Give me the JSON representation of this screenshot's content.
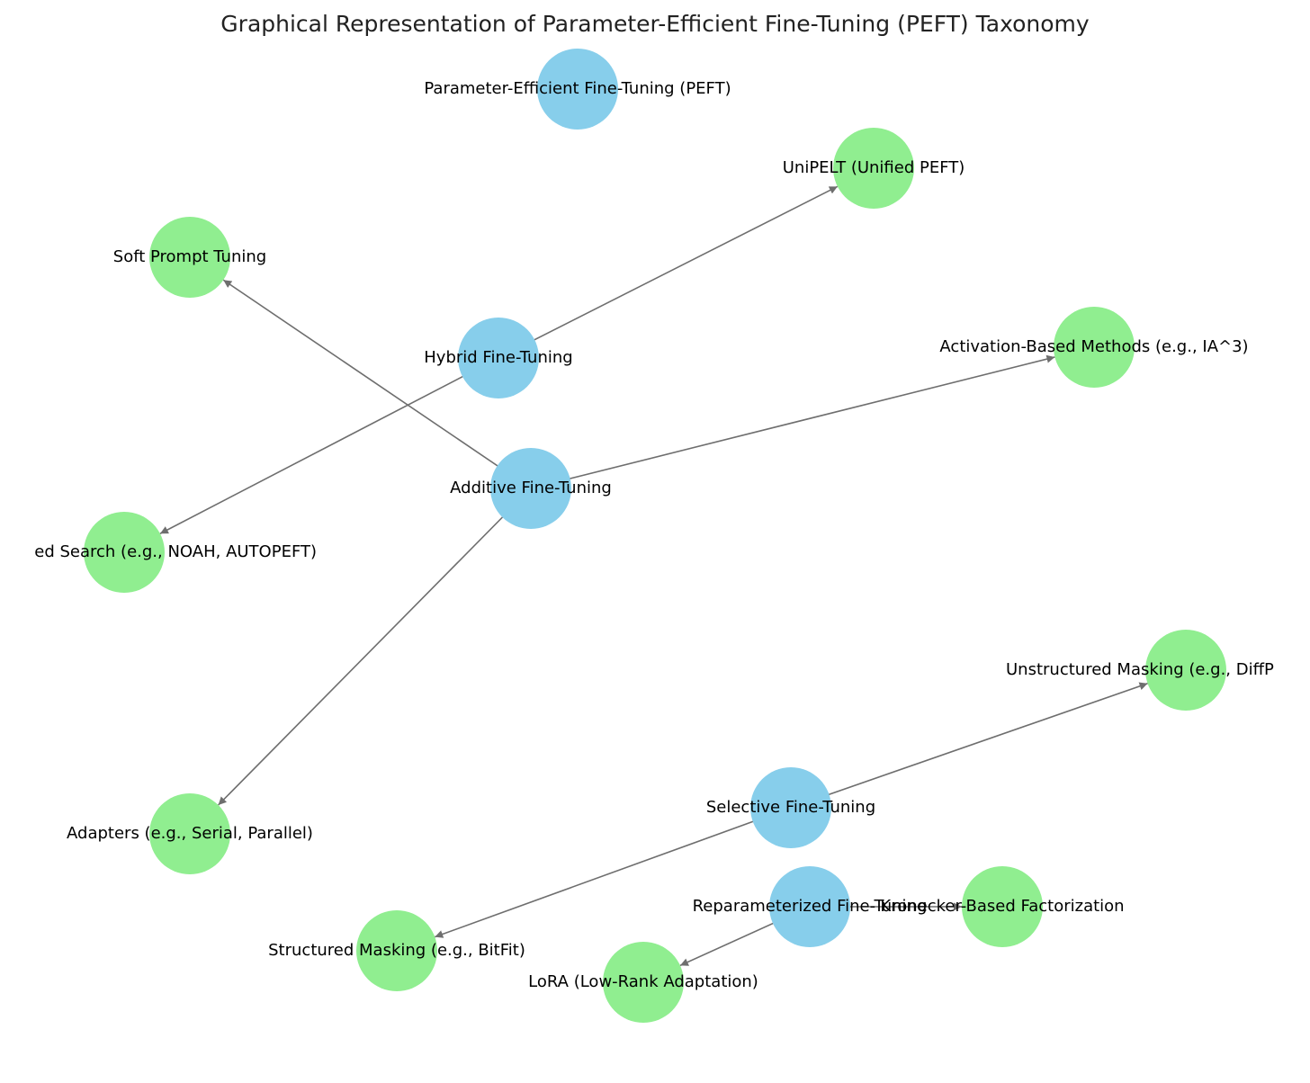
{
  "title": "Graphical Representation of Parameter-Efficient Fine-Tuning (PEFT) Taxonomy",
  "nodes": [
    {
      "label": "Parameter-Efficient Fine-Tuning (PEFT)",
      "color": "#87ceeb"
    },
    {
      "label": "UniPELT (Unified PEFT)",
      "color": "#90ee90"
    },
    {
      "label": "Soft Prompt Tuning",
      "color": "#90ee90"
    },
    {
      "label": "Hybrid Fine-Tuning",
      "color": "#87ceeb"
    },
    {
      "label": "Activation-Based Methods (e.g., IA^3)",
      "color": "#90ee90"
    },
    {
      "label": "Additive Fine-Tuning",
      "color": "#87ceeb"
    },
    {
      "label": "ed Search (e.g., NOAH, AUTOPEFT)",
      "color": "#90ee90"
    },
    {
      "label": "Unstructured Masking (e.g., DiffP",
      "color": "#90ee90"
    },
    {
      "label": "Selective Fine-Tuning",
      "color": "#87ceeb"
    },
    {
      "label": "Adapters (e.g., Serial, Parallel)",
      "color": "#90ee90"
    },
    {
      "label": "Reparameterized Fine-Tuning",
      "color": "#87ceeb"
    },
    {
      "label": "Kronecker-Based Factorization",
      "color": "#90ee90"
    },
    {
      "label": "Structured Masking (e.g., BitFit)",
      "color": "#90ee90"
    },
    {
      "label": "LoRA (Low-Rank Adaptation)",
      "color": "#90ee90"
    }
  ],
  "edges": [
    {
      "from": 3,
      "to": 1
    },
    {
      "from": 3,
      "to": 6
    },
    {
      "from": 5,
      "to": 2
    },
    {
      "from": 5,
      "to": 4
    },
    {
      "from": 5,
      "to": 9
    },
    {
      "from": 8,
      "to": 7
    },
    {
      "from": 8,
      "to": 12
    },
    {
      "from": 10,
      "to": 13
    },
    {
      "from": 10,
      "to": 11
    }
  ]
}
